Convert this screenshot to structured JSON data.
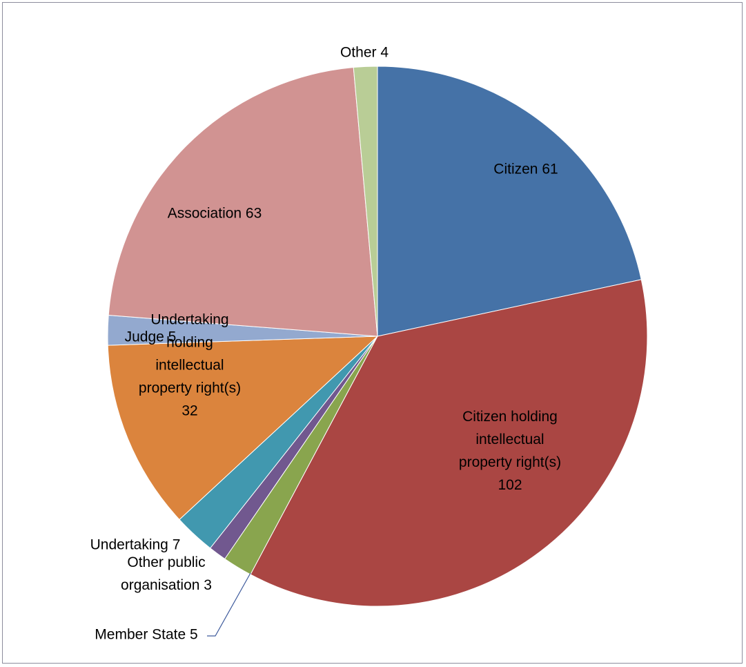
{
  "chart_data": {
    "type": "pie",
    "title": "",
    "start_angle_deg": 0,
    "direction": "clockwise",
    "slices": [
      {
        "label": "Citizen",
        "value": 61,
        "color": "#4572A7"
      },
      {
        "label": "Citizen holding intellectual property right(s)",
        "value": 102,
        "color": "#AA4643"
      },
      {
        "label": "Member State",
        "value": 5,
        "color": "#89A54E"
      },
      {
        "label": "Other public organisation",
        "value": 3,
        "color": "#71588F"
      },
      {
        "label": "Undertaking",
        "value": 7,
        "color": "#4198AF"
      },
      {
        "label": "Undertaking holding intellectual property right(s)",
        "value": 32,
        "color": "#DB843D"
      },
      {
        "label": "Judge",
        "value": 5,
        "color": "#93A9CF"
      },
      {
        "label": "Association",
        "value": 63,
        "color": "#D19392"
      },
      {
        "label": "Other",
        "value": 4,
        "color": "#B9CD96"
      }
    ],
    "data_labels": [
      {
        "lines": [
          "Citizen 61"
        ]
      },
      {
        "lines": [
          "Citizen holding",
          "intellectual",
          "property right(s)",
          "102"
        ]
      },
      {
        "lines": [
          "Member State 5"
        ]
      },
      {
        "lines": [
          "Other public",
          "organisation 3"
        ]
      },
      {
        "lines": [
          "Undertaking 7"
        ]
      },
      {
        "lines": [
          "Undertaking",
          "holding",
          "intellectual",
          "property right(s)",
          "32"
        ]
      },
      {
        "lines": [
          "Judge 5"
        ]
      },
      {
        "lines": [
          "Association 63"
        ]
      },
      {
        "lines": [
          "Other 4"
        ]
      }
    ],
    "leader_line_color": "#3D5A9C",
    "legend": "none"
  }
}
